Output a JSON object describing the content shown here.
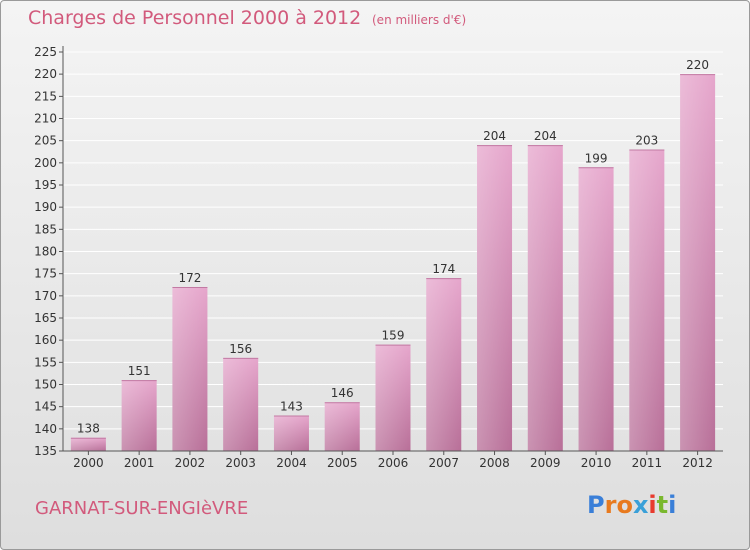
{
  "header": {
    "title": "Charges de Personnel 2000 à 2012",
    "unit": "(en milliers d'€)"
  },
  "footer": {
    "commune": "GARNAT-SUR-ENGIèVRE",
    "logo_letters": [
      "P",
      "r",
      "o",
      "x",
      "i",
      "t",
      "i"
    ]
  },
  "colors": {
    "bar": "#d690b8",
    "title": "#d25a7c",
    "logo": [
      "#3a7fd8",
      "#e87a1e",
      "#e87a1e",
      "#3aa0d8",
      "#e83a2e",
      "#7ab82e",
      "#3a7fd8"
    ]
  },
  "chart_data": {
    "type": "bar",
    "title": "Charges de Personnel 2000 à 2012",
    "subtitle": "(en milliers d'€)",
    "categories": [
      "2000",
      "2001",
      "2002",
      "2003",
      "2004",
      "2005",
      "2006",
      "2007",
      "2008",
      "2009",
      "2010",
      "2011",
      "2012"
    ],
    "values": [
      138,
      151,
      172,
      156,
      143,
      146,
      159,
      174,
      204,
      204,
      199,
      203,
      220
    ],
    "ylim": [
      135,
      225
    ],
    "yticks": [
      135,
      140,
      145,
      150,
      155,
      160,
      165,
      170,
      175,
      180,
      185,
      190,
      195,
      200,
      205,
      210,
      215,
      220,
      225
    ],
    "grid": true,
    "data_labels": true
  }
}
